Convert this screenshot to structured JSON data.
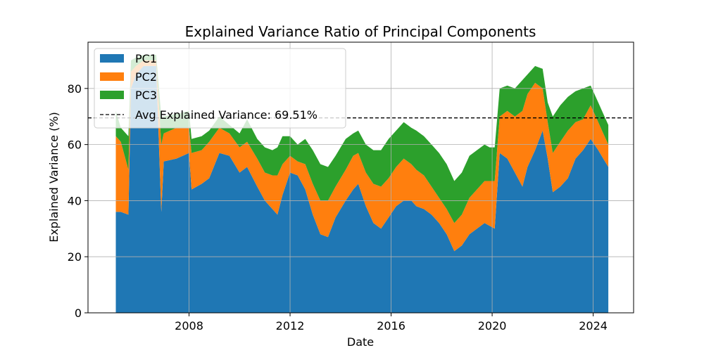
{
  "chart_data": {
    "type": "area",
    "title": "Explained Variance Ratio of Principal Components",
    "xlabel": "Date",
    "ylabel": "Explained Variance (%)",
    "xlim": [
      2004.0,
      2025.6
    ],
    "ylim": [
      0,
      96.5
    ],
    "x_ticks": [
      2008,
      2012,
      2016,
      2020,
      2024
    ],
    "y_ticks": [
      0,
      20,
      40,
      60,
      80
    ],
    "grid": true,
    "legend": {
      "placement": "top-left",
      "avg_label": "Avg Explained Variance: 69.51%"
    },
    "avg_explained_variance": 69.51,
    "x": [
      2005.1,
      2005.3,
      2005.6,
      2005.7,
      2005.9,
      2006.2,
      2006.7,
      2006.9,
      2007.0,
      2007.5,
      2008.0,
      2008.1,
      2008.5,
      2008.8,
      2009.2,
      2009.6,
      2010.0,
      2010.3,
      2010.7,
      2011.0,
      2011.3,
      2011.5,
      2011.7,
      2012.0,
      2012.3,
      2012.6,
      2012.9,
      2013.2,
      2013.5,
      2013.8,
      2014.2,
      2014.5,
      2014.7,
      2015.0,
      2015.3,
      2015.6,
      2015.9,
      2016.2,
      2016.5,
      2016.8,
      2017.0,
      2017.3,
      2017.6,
      2017.9,
      2018.2,
      2018.5,
      2018.8,
      2019.1,
      2019.4,
      2019.7,
      2019.9,
      2020.1,
      2020.3,
      2020.6,
      2020.9,
      2021.2,
      2021.4,
      2021.7,
      2022.0,
      2022.2,
      2022.4,
      2022.7,
      2023.0,
      2023.3,
      2023.6,
      2023.9,
      2024.2,
      2024.4,
      2024.6
    ],
    "series": [
      {
        "name": "PC1",
        "color": "#1f77b4",
        "values": [
          36,
          36,
          35,
          80,
          85,
          88,
          88,
          36,
          54,
          55,
          57,
          44,
          46,
          48,
          57,
          56,
          50,
          52,
          45,
          40,
          37,
          35,
          42,
          50,
          49,
          44,
          35,
          28,
          27,
          34,
          40,
          44,
          46,
          38,
          32,
          30,
          34,
          38,
          40,
          40,
          38,
          37,
          35,
          32,
          28,
          22,
          24,
          28,
          30,
          32,
          31,
          30,
          57,
          55,
          50,
          45,
          52,
          58,
          65,
          55,
          43,
          45,
          48,
          55,
          58,
          62,
          58,
          55,
          52
        ]
      },
      {
        "name": "PC2",
        "color": "#ff7f0e",
        "values": [
          27,
          25,
          16,
          6,
          3,
          2,
          2,
          24,
          10,
          11,
          9,
          13,
          12,
          13,
          9,
          8,
          9,
          9,
          10,
          10,
          12,
          14,
          11,
          6,
          5,
          9,
          11,
          12,
          13,
          11,
          11,
          12,
          11,
          12,
          14,
          15,
          14,
          14,
          15,
          13,
          13,
          12,
          10,
          9,
          9,
          10,
          11,
          13,
          14,
          15,
          16,
          17,
          13,
          17,
          20,
          27,
          26,
          24,
          15,
          13,
          14,
          16,
          17,
          13,
          11,
          12,
          10,
          9,
          8
        ]
      },
      {
        "name": "PC3",
        "color": "#2ca02c",
        "values": [
          9,
          5,
          12,
          4,
          3,
          2,
          2,
          10,
          6,
          5,
          6,
          5,
          5,
          4,
          4,
          3,
          5,
          8,
          7,
          9,
          9,
          10,
          10,
          7,
          6,
          9,
          12,
          13,
          12,
          11,
          11,
          8,
          8,
          10,
          12,
          13,
          14,
          13,
          13,
          13,
          14,
          14,
          15,
          16,
          16,
          15,
          15,
          15,
          14,
          13,
          12,
          12,
          10,
          9,
          10,
          11,
          7,
          6,
          7,
          7,
          13,
          13,
          12,
          11,
          11,
          7,
          7,
          7,
          7
        ]
      }
    ]
  }
}
